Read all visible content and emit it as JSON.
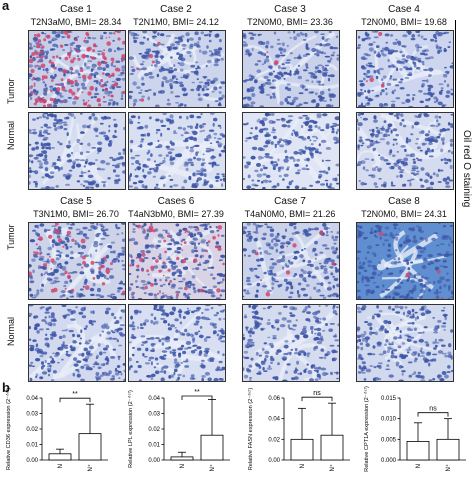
{
  "panel_a": {
    "letter": "a",
    "side_label": "Oil red O staining",
    "row_labels": {
      "tumor": "Tumor",
      "normal": "Normal"
    },
    "cases_top": [
      {
        "title": "Case 1",
        "stage": "T2N3aM0, BMI= 28.34"
      },
      {
        "title": "Case 2",
        "stage": "T2N1M0, BMI= 24.12"
      },
      {
        "title": "Case 3",
        "stage": "T2N0M0, BMI= 23.36"
      },
      {
        "title": "Case 4",
        "stage": "T2N0M0, BMI= 19.68"
      }
    ],
    "cases_bottom": [
      {
        "title": "Case 5",
        "stage": "T3N1M0, BMI= 26.70"
      },
      {
        "title": "Cases 6",
        "stage": "T4aN3bM0, BMI= 27.39"
      },
      {
        "title": "Case 7",
        "stage": "T4aN0M0, BMI= 21.26"
      },
      {
        "title": "Case 8",
        "stage": "T2N0M0, BMI= 24.31"
      }
    ],
    "colors": {
      "hematoxylin": "#3f57a8",
      "background": "#c9d3ec",
      "lipid": "#d2456d"
    }
  },
  "panel_b": {
    "letter": "b"
  },
  "chart_data": [
    {
      "type": "bar",
      "categories": [
        "N",
        "N⁺"
      ],
      "values": [
        0.004,
        0.017
      ],
      "errors": [
        0.003,
        0.019
      ],
      "ylabel": "Relative CD36 expression (2⁻ᐞᶜᵗ)",
      "ylim": [
        0,
        0.04
      ],
      "yticks": [
        "0.00",
        "0.01",
        "0.02",
        "0.03",
        "0.04"
      ],
      "significance": "**"
    },
    {
      "type": "bar",
      "categories": [
        "N",
        "N⁺"
      ],
      "values": [
        0.002,
        0.016
      ],
      "errors": [
        0.003,
        0.023
      ],
      "ylabel": "Relative LPL expression (2⁻ᐞᶜᵗ)",
      "ylim": [
        0,
        0.04
      ],
      "yticks": [
        "0.00",
        "0.01",
        "0.02",
        "0.03",
        "0.04"
      ],
      "significance": "**"
    },
    {
      "type": "bar",
      "categories": [
        "N",
        "N⁺"
      ],
      "values": [
        0.02,
        0.024
      ],
      "errors": [
        0.03,
        0.031
      ],
      "ylabel": "Relative FASN expression (2⁻ᐞᶜᵗ)",
      "ylim": [
        0,
        0.06
      ],
      "yticks": [
        "0.00",
        "0.02",
        "0.04",
        "0.06"
      ],
      "significance": "ns"
    },
    {
      "type": "bar",
      "categories": [
        "N",
        "N⁺"
      ],
      "values": [
        0.0045,
        0.005
      ],
      "errors": [
        0.0045,
        0.005
      ],
      "ylabel": "Relative CPT1A expression (2⁻ᐞᶜᵗ)",
      "ylim": [
        0,
        0.015
      ],
      "yticks": [
        "0.000",
        "0.005",
        "0.010",
        "0.015"
      ],
      "significance": "ns"
    }
  ]
}
